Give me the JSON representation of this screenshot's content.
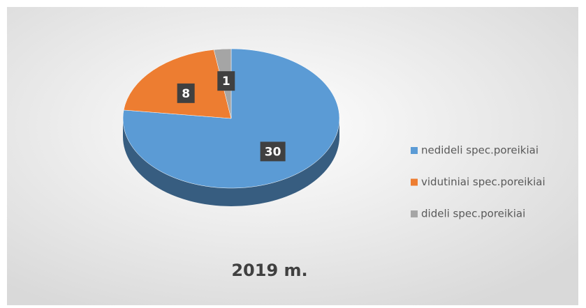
{
  "chart_data": {
    "type": "pie",
    "title": "2019 m.",
    "categories": [
      "nedideli spec.poreikiai",
      "vidutiniai spec.poreikiai",
      "dideli spec.poreikiai"
    ],
    "values": [
      30,
      8,
      1
    ],
    "colors": [
      "#5b9bd5",
      "#ed7d31",
      "#a5a5a5"
    ],
    "legend": "right",
    "style": "3d"
  }
}
